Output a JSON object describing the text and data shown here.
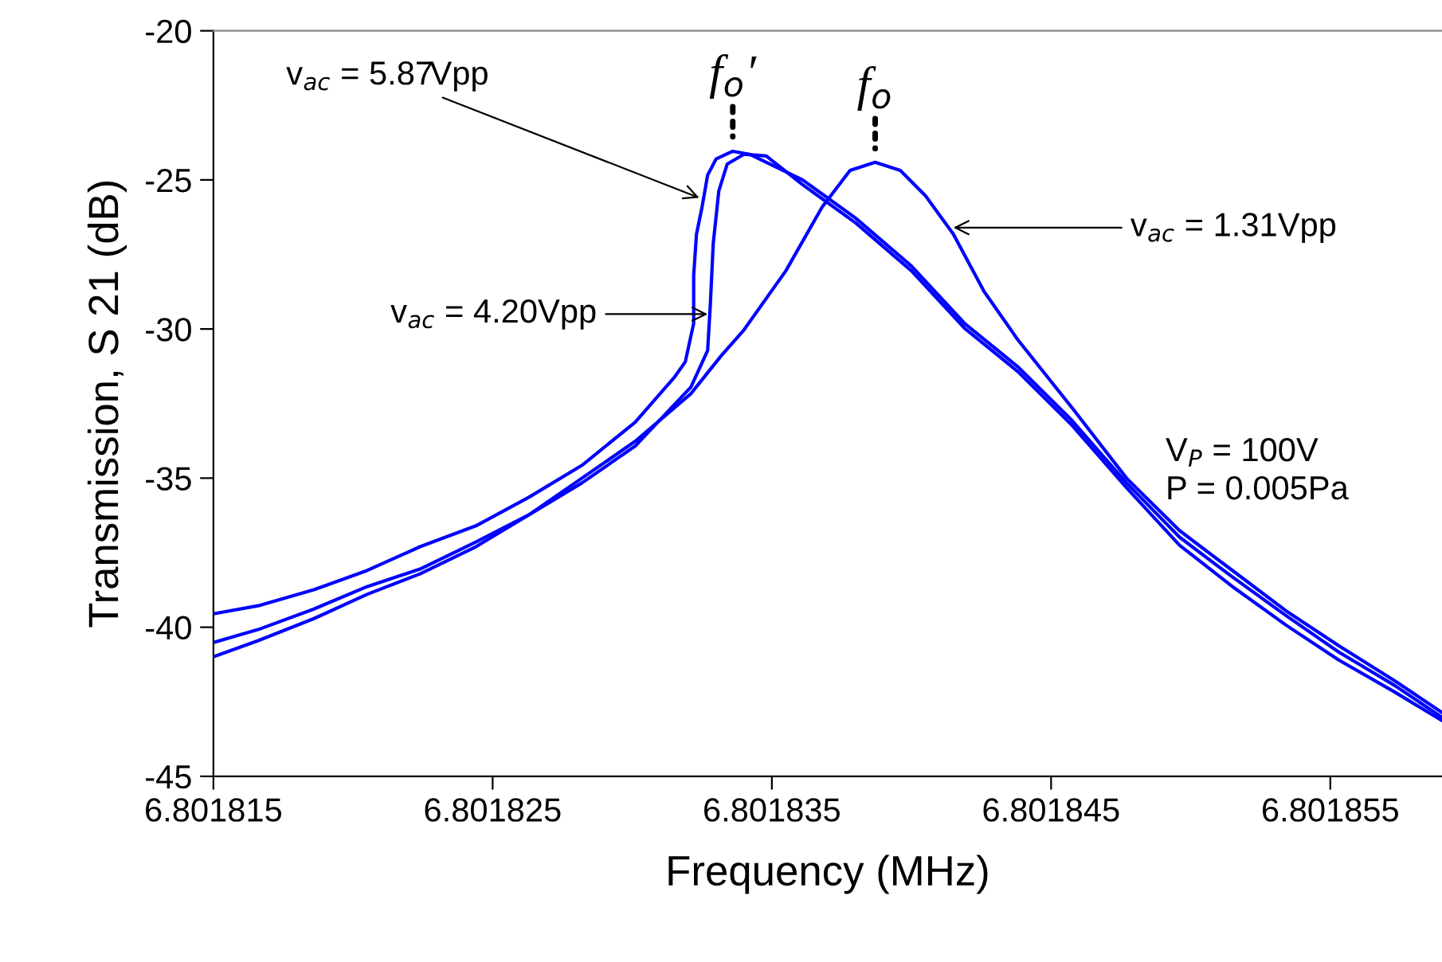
{
  "chart_data": {
    "type": "line",
    "xlabel": "Frequency (MHz)",
    "ylabel": "Transmission, S 21 (dB)",
    "xlim": [
      6.801815,
      6.801859
    ],
    "ylim": [
      -45,
      -20
    ],
    "xticks": [
      6.801815,
      6.801825,
      6.801835,
      6.801845,
      6.801855
    ],
    "yticks": [
      -45,
      -40,
      -35,
      -30,
      -25,
      -20
    ],
    "grid": false,
    "legend": false,
    "marker": "none",
    "line_style": "solid",
    "series": [
      {
        "color": "#0000ff",
        "x": [
          6.801815,
          6.8018166,
          6.8018186,
          6.8018205,
          6.8018224,
          6.8018244,
          6.8018263,
          6.8018282,
          6.8018301,
          6.8018315,
          6.8018319,
          6.8018322,
          6.8018322,
          6.8018323,
          6.8018325,
          6.8018327,
          6.801833,
          6.8018336,
          6.8018342,
          6.8018361,
          6.801838,
          6.80184,
          6.8018419,
          6.8018438,
          6.8018457,
          6.8018477,
          6.8018496,
          6.8018515,
          6.8018534,
          6.8018553,
          6.8018573,
          6.801859
        ],
        "values": [
          -39.55,
          -39.28,
          -38.74,
          -38.1,
          -37.3,
          -36.6,
          -35.64,
          -34.57,
          -33.13,
          -31.63,
          -31.1,
          -29.81,
          -28.21,
          -26.82,
          -25.91,
          -24.84,
          -24.3,
          -24.04,
          -24.14,
          -25.0,
          -26.28,
          -27.89,
          -29.81,
          -31.26,
          -33.02,
          -35.16,
          -36.98,
          -38.32,
          -39.6,
          -40.83,
          -41.95,
          -43.02
        ]
      },
      {
        "color": "#0000ff",
        "x": [
          6.801815,
          6.8018166,
          6.8018186,
          6.8018205,
          6.8018224,
          6.8018244,
          6.8018263,
          6.8018282,
          6.8018301,
          6.8018321,
          6.8018327,
          6.8018328,
          6.8018329,
          6.8018331,
          6.8018334,
          6.801834,
          6.8018348,
          6.8018361,
          6.801838,
          6.80184,
          6.8018419,
          6.8018438,
          6.8018457,
          6.8018477,
          6.8018496,
          6.8018515,
          6.8018534,
          6.8018553,
          6.8018573,
          6.801859
        ],
        "values": [
          -40.51,
          -40.08,
          -39.39,
          -38.64,
          -38.05,
          -37.14,
          -36.23,
          -35.16,
          -33.93,
          -31.95,
          -30.72,
          -29.12,
          -27.14,
          -25.37,
          -24.47,
          -24.14,
          -24.2,
          -25.16,
          -26.44,
          -28.05,
          -29.97,
          -31.42,
          -33.18,
          -35.32,
          -37.25,
          -38.64,
          -39.92,
          -41.1,
          -42.17,
          -43.13
        ]
      },
      {
        "color": "#0000ff",
        "x": [
          6.801815,
          6.8018166,
          6.8018186,
          6.8018205,
          6.8018224,
          6.8018244,
          6.8018263,
          6.8018282,
          6.8018301,
          6.8018321,
          6.8018332,
          6.801834,
          6.8018355,
          6.8018368,
          6.8018378,
          6.8018387,
          6.8018396,
          6.8018405,
          6.8018415,
          6.8018426,
          6.8018438,
          6.8018458,
          6.8018477,
          6.8018496,
          6.8018515,
          6.8018534,
          6.8018553,
          6.8018573,
          6.801859
        ],
        "values": [
          -40.99,
          -40.45,
          -39.71,
          -38.9,
          -38.21,
          -37.3,
          -36.23,
          -35.0,
          -33.77,
          -32.17,
          -30.88,
          -30.03,
          -28.05,
          -25.91,
          -24.68,
          -24.41,
          -24.68,
          -25.53,
          -26.82,
          -28.74,
          -30.35,
          -32.7,
          -35.0,
          -36.76,
          -38.1,
          -39.44,
          -40.62,
          -41.79,
          -42.86
        ]
      }
    ],
    "annotations": [
      {
        "text": "v$_{ac}$ = 5.87Vpp",
        "x": 6.8018324,
        "y": -25.6
      },
      {
        "text": "v$_{ac}$ = 4.20Vpp",
        "x": 6.8018327,
        "y": -29.5
      },
      {
        "text": "v$_{ac}$ = 1.31Vpp",
        "x": 6.8018415,
        "y": -26.6
      },
      {
        "text": "f$_{o}$′",
        "x": 6.8018336,
        "y": -24.0
      },
      {
        "text": "f$_{o}$",
        "x": 6.8018387,
        "y": -24.4
      },
      "V$_{P}$ = 100V\nP = 0.005Pa"
    ]
  }
}
